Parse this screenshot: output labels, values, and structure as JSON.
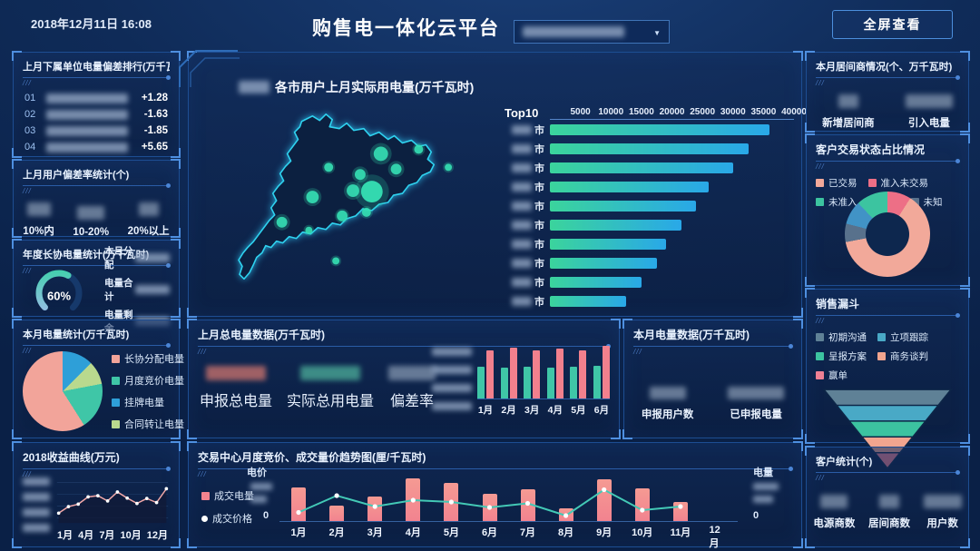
{
  "header": {
    "date": "2018年12月11日 16:08",
    "title": "购售电一体化云平台",
    "fullscreen_label": "全屏查看"
  },
  "panels": {
    "rank": {
      "title": "上月下属单位电量偏差排行(万千瓦时)",
      "rows": [
        {
          "index": "01",
          "value": "+1.28"
        },
        {
          "index": "02",
          "value": "-1.63"
        },
        {
          "index": "03",
          "value": "-1.85"
        },
        {
          "index": "04",
          "value": "+5.65"
        }
      ]
    },
    "deviation": {
      "title": "上月用户偏差率统计(个)",
      "labels": [
        "10%内",
        "10-20%",
        "20%以上"
      ]
    },
    "annual": {
      "title": "年度长协电量统计(万千瓦时)",
      "rows": [
        "本月分配",
        "电量合计",
        "电量剩余"
      ]
    },
    "month_power": {
      "title": "本月电量统计(万千瓦时)"
    },
    "income": {
      "title": "2018收益曲线(万元)"
    },
    "map": {
      "title": "各市用户上月实际用电量(万千瓦时)"
    },
    "last_month": {
      "title": "上月总电量数据(万千瓦时)",
      "stats": [
        "申报总电量",
        "实际总用电量",
        "偏差率"
      ]
    },
    "this_month": {
      "title": "本月电量数据(万千瓦时)",
      "stats": [
        "申报用户数",
        "已申报电量"
      ]
    },
    "trend": {
      "title": "交易中心月度竞价、成交量价趋势图(厘/千瓦时)",
      "left_axis": "电价",
      "right_axis": "电量",
      "zero": "0"
    },
    "broker": {
      "title": "本月居间商情况(个、万千瓦时)",
      "stats": [
        "新增居间商",
        "引入电量"
      ]
    },
    "status": {
      "title": "客户交易状态占比情况"
    },
    "funnel": {
      "title": "销售漏斗"
    },
    "customer": {
      "title": "客户统计(个)",
      "stats": [
        "电源商数",
        "居间商数",
        "用户数"
      ]
    }
  },
  "chart_data": [
    {
      "id": "top10_city_power",
      "type": "bar",
      "orientation": "horizontal",
      "title": "Top10",
      "ticks": [
        5000,
        10000,
        15000,
        20000,
        25000,
        30000,
        35000,
        40000
      ],
      "xlim": [
        0,
        40000
      ],
      "category_suffix": "市",
      "categories_redacted": true,
      "values": [
        36000,
        32500,
        30000,
        26000,
        24000,
        21500,
        19000,
        17500,
        15000,
        12500
      ],
      "bar_gradient": [
        "#3bd49c",
        "#29a8e8"
      ]
    },
    {
      "id": "month_power_pie",
      "type": "pie",
      "legend": [
        "长协分配电量",
        "月度竞价电量",
        "挂牌电量",
        "合同转让电量"
      ],
      "legend_colors": [
        "#f2a49a",
        "#3fc6a7",
        "#2e9fd8",
        "#b9d98e"
      ],
      "slices": [
        {
          "label": "挂牌电量",
          "value": 12.5,
          "color": "#2e9fd8"
        },
        {
          "label": "合同转让电量",
          "value": 9.5,
          "color": "#b9d98e"
        },
        {
          "label": "月度竞价电量",
          "value": 19,
          "color": "#3fc6a7"
        },
        {
          "label": "长协分配电量",
          "value": 59,
          "color": "#f2a49a"
        }
      ]
    },
    {
      "id": "income_2018",
      "type": "line",
      "x_ticks": [
        "1月",
        "4月",
        "7月",
        "10月",
        "12月"
      ],
      "values": [
        20,
        36,
        42,
        60,
        63,
        50,
        72,
        57,
        44,
        56,
        46,
        80
      ],
      "ylim": [
        0,
        100
      ],
      "y_ticks_redacted": true,
      "line_color": "#f2a8a8",
      "marker_color": "#ffffff"
    },
    {
      "id": "last_month_compare",
      "type": "bar",
      "categories": [
        "1月",
        "2月",
        "3月",
        "4月",
        "5月",
        "6月"
      ],
      "series": [
        {
          "name": "series-teal",
          "color": "#3fc6a7",
          "values": [
            58,
            57,
            58,
            57,
            58,
            60
          ]
        },
        {
          "name": "series-pink",
          "color": "#f2808d",
          "values": [
            88,
            93,
            88,
            92,
            88,
            96
          ]
        }
      ],
      "ylim": [
        0,
        100
      ],
      "y_ticks_redacted": true
    },
    {
      "id": "trade_trend",
      "type": "bar+line",
      "categories": [
        "1月",
        "2月",
        "3月",
        "4月",
        "5月",
        "6月",
        "7月",
        "8月",
        "9月",
        "10月",
        "11月",
        "12月"
      ],
      "bars": {
        "name": "成交电量",
        "color": "#f2838f",
        "values": [
          75,
          35,
          55,
          95,
          85,
          60,
          70,
          28,
          92,
          72,
          42,
          null
        ]
      },
      "line": {
        "name": "成交价格",
        "color": "#43c9b6",
        "values": [
          15,
          52,
          28,
          42,
          38,
          26,
          35,
          8,
          65,
          20,
          28,
          null
        ]
      },
      "ylim": [
        0,
        100
      ],
      "y_ticks_redacted": true
    },
    {
      "id": "customer_status_donut",
      "type": "pie",
      "donut": true,
      "legend": [
        "已交易",
        "准入未交易",
        "未准入",
        "停用",
        "未知"
      ],
      "legend_colors": [
        "#f2a99a",
        "#ed6f86",
        "#3cc4a0",
        "#4193c6",
        "#58718c"
      ],
      "slices": [
        {
          "label": "准入未交易",
          "value": 9,
          "color": "#ed6f86"
        },
        {
          "label": "已交易",
          "value": 63,
          "color": "#f2a99a"
        },
        {
          "label": "未知",
          "value": 7,
          "color": "#58718c"
        },
        {
          "label": "停用",
          "value": 9,
          "color": "#4193c6"
        },
        {
          "label": "未准入",
          "value": 12,
          "color": "#3cc4a0"
        }
      ]
    },
    {
      "id": "sales_funnel",
      "type": "funnel",
      "stages": [
        {
          "label": "初期沟通",
          "color": "#5f8196"
        },
        {
          "label": "立项跟踪",
          "color": "#49a9c6"
        },
        {
          "label": "呈报方案",
          "color": "#3cc3a0"
        },
        {
          "label": "商务谈判",
          "color": "#f2a58f"
        },
        {
          "label": "赢单",
          "color": "#ee8094"
        }
      ]
    },
    {
      "id": "annual_gauge",
      "type": "gauge",
      "value": 60,
      "label": "60%",
      "colors": [
        "#38d2a6",
        "#a9b9f2"
      ]
    }
  ]
}
